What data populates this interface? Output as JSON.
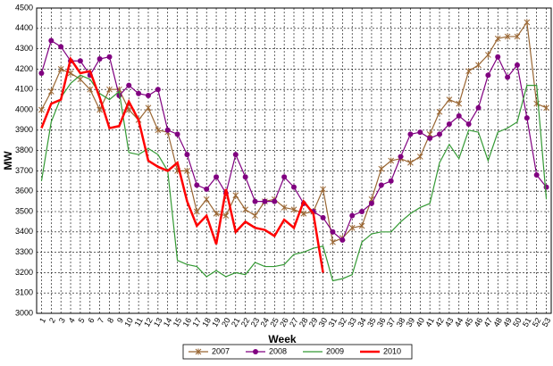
{
  "chart_data": {
    "type": "line",
    "xlabel": "Week",
    "ylabel": "MW",
    "categories": [
      "1",
      "2",
      "3",
      "4",
      "5",
      "6",
      "7",
      "8",
      "9",
      "10",
      "11",
      "12",
      "13",
      "14",
      "15",
      "16",
      "17",
      "18",
      "19",
      "20",
      "21",
      "22",
      "23",
      "24",
      "25",
      "26",
      "27",
      "28",
      "29",
      "30",
      "31",
      "32",
      "33",
      "34",
      "35",
      "36",
      "37",
      "38",
      "39",
      "40",
      "41",
      "42",
      "43",
      "44",
      "45",
      "46",
      "47",
      "48",
      "49",
      "50",
      "51",
      "52",
      "53"
    ],
    "ylim": [
      3000,
      4500
    ],
    "yticks": [
      3000,
      3100,
      3200,
      3300,
      3400,
      3500,
      3600,
      3700,
      3800,
      3900,
      4000,
      4100,
      4200,
      4300,
      4400,
      4500
    ],
    "grid": true,
    "legend": "bottom",
    "series": [
      {
        "name": "2007",
        "color": "#996633",
        "marker": "x",
        "values": [
          4000,
          4090,
          4200,
          4180,
          4150,
          4100,
          4000,
          4100,
          4100,
          4000,
          3950,
          4010,
          3900,
          3890,
          3700,
          3700,
          3500,
          3560,
          3490,
          3480,
          3580,
          3510,
          3480,
          3550,
          3560,
          3520,
          3510,
          3490,
          3500,
          3610,
          3350,
          3370,
          3420,
          3430,
          3560,
          3710,
          3750,
          3760,
          3740,
          3770,
          3880,
          3990,
          4050,
          4030,
          4190,
          4220,
          4270,
          4350,
          4360,
          4360,
          4430,
          4030,
          4010
        ]
      },
      {
        "name": "2008",
        "color": "#800080",
        "marker": "circle",
        "values": [
          4180,
          4340,
          4310,
          4240,
          4240,
          4170,
          4250,
          4260,
          4070,
          4120,
          4080,
          4070,
          4100,
          3900,
          3880,
          3780,
          3630,
          3610,
          3670,
          3590,
          3780,
          3670,
          3550,
          3550,
          3550,
          3670,
          3620,
          3540,
          3500,
          3470,
          3400,
          3360,
          3480,
          3500,
          3540,
          3630,
          3650,
          3770,
          3880,
          3890,
          3860,
          3880,
          3930,
          3970,
          3930,
          4010,
          4170,
          4260,
          4160,
          4220,
          3960,
          3680,
          3620
        ]
      },
      {
        "name": "2009",
        "color": "#339933",
        "marker": "none",
        "values": [
          3650,
          3940,
          4060,
          4130,
          4170,
          4150,
          4080,
          4050,
          4090,
          3790,
          3780,
          3810,
          3780,
          3700,
          3260,
          3240,
          3230,
          3180,
          3210,
          3180,
          3200,
          3190,
          3250,
          3230,
          3230,
          3240,
          3290,
          3300,
          3320,
          3330,
          3160,
          3170,
          3190,
          3350,
          3390,
          3400,
          3400,
          3450,
          3490,
          3520,
          3540,
          3740,
          3830,
          3760,
          3900,
          3890,
          3750,
          3890,
          3910,
          3940,
          4120,
          4120,
          3560
        ]
      },
      {
        "name": "2010",
        "color": "#ff0000",
        "marker": "none",
        "width": 2.5,
        "values": [
          3910,
          4030,
          4050,
          4250,
          4180,
          4190,
          4060,
          3910,
          3920,
          4040,
          3950,
          3750,
          3720,
          3700,
          3740,
          3550,
          3430,
          3480,
          3340,
          3610,
          3400,
          3450,
          3420,
          3410,
          3380,
          3460,
          3420,
          3550,
          3490,
          3200,
          null,
          null,
          null,
          null,
          null,
          null,
          null,
          null,
          null,
          null,
          null,
          null,
          null,
          null,
          null,
          null,
          null,
          null,
          null,
          null,
          null,
          null,
          null
        ]
      }
    ]
  }
}
